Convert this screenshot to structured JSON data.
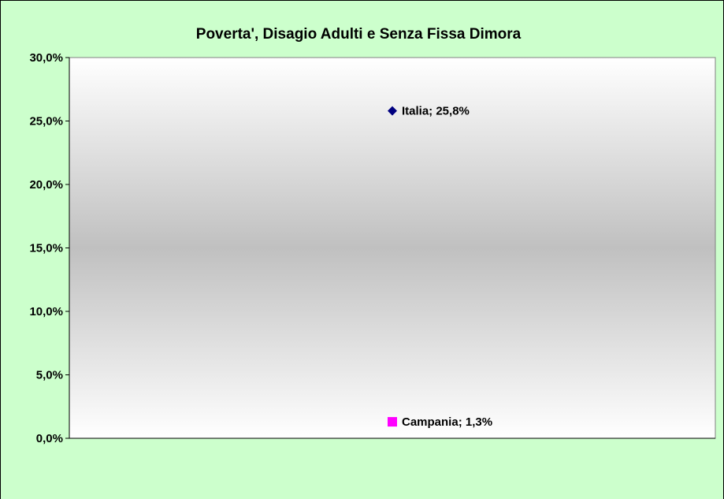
{
  "chart_data": {
    "type": "line",
    "title": "Poverta', Disagio Adulti e Senza Fissa Dimora",
    "categories": [
      null
    ],
    "series": [
      {
        "name": "Italia",
        "color": "#000080",
        "marker": "diamond",
        "values": [
          25.8
        ],
        "value_labels": [
          "Italia; 25,8%"
        ]
      },
      {
        "name": "Campania",
        "color": "#ff00ff",
        "marker": "square",
        "values": [
          1.3
        ],
        "value_labels": [
          "Campania; 1,3%"
        ]
      }
    ],
    "ylim": [
      0,
      30
    ],
    "yticks": [
      {
        "value": 0,
        "label": "0,0%"
      },
      {
        "value": 5,
        "label": "5,0%"
      },
      {
        "value": 10,
        "label": "10,0%"
      },
      {
        "value": 15,
        "label": "15,0%"
      },
      {
        "value": 20,
        "label": "20,0%"
      },
      {
        "value": 25,
        "label": "25,0%"
      },
      {
        "value": 30,
        "label": "30,0%"
      }
    ],
    "grid": false
  }
}
